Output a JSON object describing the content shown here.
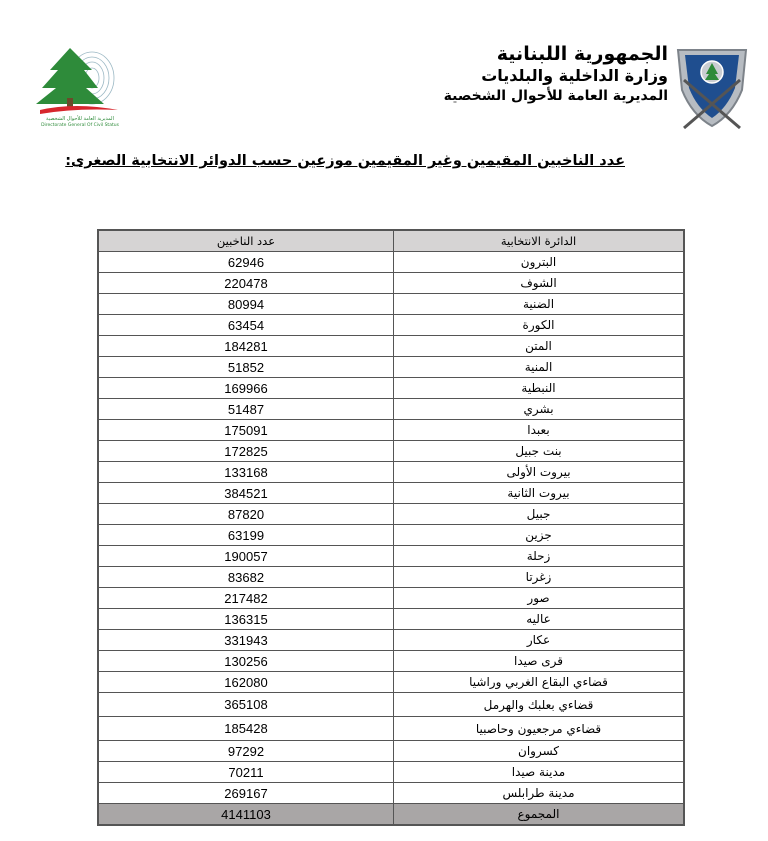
{
  "header": {
    "line1": "الجمهورية اللبنانية",
    "line2": "وزارة الداخلية والبلديات",
    "line3": "المديرية العامة للأحوال الشخصية",
    "logo_left_caption_ar": "المديرية العامة للأحوال الشخصية",
    "logo_left_caption_en": "Directorate General Of Civil Status",
    "colors": {
      "shield_blue": "#1f4e8f",
      "cedar_green": "#2e8b3a",
      "wave_red": "#d7262d"
    }
  },
  "title": "عدد الناخبين المقيمين وغير المقيمين موزعين حسب الدوائر الانتخابية الصغرى:",
  "table": {
    "columns": [
      "الدائرة الانتخابية",
      "عدد الناخبين"
    ],
    "rows": [
      [
        "البترون",
        "62946"
      ],
      [
        "الشوف",
        "220478"
      ],
      [
        "الضنية",
        "80994"
      ],
      [
        "الكورة",
        "63454"
      ],
      [
        "المتن",
        "184281"
      ],
      [
        "المنية",
        "51852"
      ],
      [
        "النبطية",
        "169966"
      ],
      [
        "بشري",
        "51487"
      ],
      [
        "بعبدا",
        "175091"
      ],
      [
        "بنت جبيل",
        "172825"
      ],
      [
        "بيروت الأولى",
        "133168"
      ],
      [
        "بيروت الثانية",
        "384521"
      ],
      [
        "جبيل",
        "87820"
      ],
      [
        "جزين",
        "63199"
      ],
      [
        "زحلة",
        "190057"
      ],
      [
        "زغرتا",
        "83682"
      ],
      [
        "صور",
        "217482"
      ],
      [
        "عاليه",
        "136315"
      ],
      [
        "عكار",
        "331943"
      ],
      [
        "قرى صيدا",
        "130256"
      ],
      [
        "قضاءي البقاع الغربي وراشيا",
        "162080"
      ],
      [
        "قضاءي بعلبك والهرمل",
        "365108"
      ],
      [
        "قضاءي مرجعيون وحاصبيا",
        "185428"
      ],
      [
        "كسروان",
        "97292"
      ],
      [
        "مدينة صيدا",
        "70211"
      ],
      [
        "مدينة طرابلس",
        "269167"
      ]
    ],
    "total": [
      "المجموع",
      "4141103"
    ]
  }
}
